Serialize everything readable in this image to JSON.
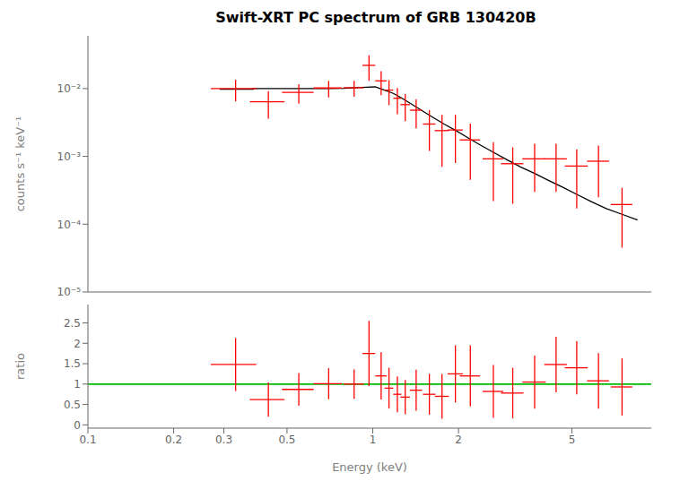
{
  "chart_data": [
    {
      "type": "errorbar",
      "title": "Swift-XRT PC spectrum of GRB 130420B",
      "ylabel": "counts s⁻¹ keV⁻¹",
      "log": true,
      "grid": false,
      "tick_labels": "y",
      "xlim": [
        0.1,
        9.5
      ],
      "ylim": [
        1e-05,
        0.06
      ],
      "xticks": [
        0.1,
        0.2,
        0.3,
        0.5,
        1,
        2,
        5
      ],
      "yticks": [
        {
          "value": 1e-05,
          "label": "10⁻⁵"
        },
        {
          "value": 0.0001,
          "label": "10⁻⁴"
        },
        {
          "value": 0.001,
          "label": "10⁻³"
        },
        {
          "value": 0.01,
          "label": "10⁻²"
        }
      ],
      "series": [
        {
          "type": "line",
          "color": "#000000",
          "x": [
            0.29,
            0.38,
            0.38,
            0.46,
            0.46,
            0.54,
            0.54,
            0.62,
            0.62,
            0.7,
            0.7,
            0.79,
            0.79,
            0.88,
            0.88,
            0.95,
            0.95,
            1.02,
            1.02,
            1.1,
            1.1,
            1.18,
            1.18,
            1.26,
            1.26,
            1.36,
            1.36,
            1.48,
            1.48,
            1.62,
            1.62,
            1.78,
            1.78,
            1.96,
            1.96,
            2.15,
            2.15,
            2.38,
            2.38,
            2.65,
            2.65,
            2.95,
            2.95,
            3.3,
            3.3,
            3.7,
            3.7,
            4.15,
            4.15,
            4.65,
            4.65,
            5.2,
            5.2,
            5.85,
            5.85,
            6.6,
            6.6,
            7.5,
            7.5,
            8.5
          ],
          "values": [
            0.0098,
            0.0098,
            0.01,
            0.01,
            0.01,
            0.01,
            0.01,
            0.01,
            0.01,
            0.01,
            0.01,
            0.0101,
            0.0101,
            0.0103,
            0.0103,
            0.0105,
            0.0105,
            0.0106,
            0.0106,
            0.0095,
            0.0095,
            0.0085,
            0.0085,
            0.0073,
            0.0073,
            0.006,
            0.006,
            0.0048,
            0.0048,
            0.0038,
            0.0038,
            0.003,
            0.003,
            0.0024,
            0.0024,
            0.0019,
            0.0019,
            0.00148,
            0.00148,
            0.00115,
            0.00115,
            0.0009,
            0.0009,
            0.0007,
            0.0007,
            0.00056,
            0.00056,
            0.00044,
            0.00044,
            0.00035,
            0.00035,
            0.000275,
            0.000275,
            0.000215,
            0.000215,
            0.00017,
            0.00017,
            0.00014,
            0.00014,
            0.000115
          ]
        },
        {
          "type": "errorbar",
          "color": "#ff0000",
          "x": [
            0.33,
            0.43,
            0.55,
            0.7,
            0.86,
            0.97,
            1.07,
            1.14,
            1.22,
            1.3,
            1.42,
            1.58,
            1.75,
            1.95,
            2.2,
            2.65,
            3.1,
            3.7,
            4.4,
            5.2,
            6.2,
            7.5
          ],
          "xerr": [
            0.06,
            0.06,
            0.07,
            0.08,
            0.07,
            0.05,
            0.05,
            0.04,
            0.04,
            0.05,
            0.07,
            0.08,
            0.1,
            0.12,
            0.18,
            0.22,
            0.28,
            0.35,
            0.4,
            0.48,
            0.55,
            0.65
          ],
          "values": [
            0.01,
            0.0064,
            0.0088,
            0.0102,
            0.0103,
            0.022,
            0.013,
            0.0095,
            0.0072,
            0.0058,
            0.0048,
            0.003,
            0.0024,
            0.00245,
            0.00175,
            0.00092,
            0.00078,
            0.00092,
            0.00092,
            0.00072,
            0.00085,
            0.000195
          ],
          "yerr": [
            0.0035,
            0.0028,
            0.0028,
            0.0028,
            0.0027,
            0.009,
            0.005,
            0.0038,
            0.003,
            0.0025,
            0.0022,
            0.0018,
            0.0017,
            0.00165,
            0.0013,
            0.0007,
            0.00058,
            0.00062,
            0.00062,
            0.00055,
            0.0006,
            0.00015
          ]
        }
      ]
    },
    {
      "type": "errorbar",
      "xlabel": "Energy (keV)",
      "ylabel": "ratio",
      "log": "x",
      "grid": false,
      "xlim": [
        0.1,
        9.5
      ],
      "ylim": [
        -0.08,
        2.95
      ],
      "xticks": [
        0.1,
        0.2,
        0.3,
        0.5,
        1,
        2,
        5
      ],
      "yticks": [
        0,
        0.5,
        1,
        1.5,
        2,
        2.5
      ],
      "reference_line": {
        "y": 1,
        "color": "#00bb00"
      },
      "series": [
        {
          "type": "errorbar",
          "color": "#ff0000",
          "x": [
            0.33,
            0.43,
            0.55,
            0.7,
            0.86,
            0.97,
            1.07,
            1.14,
            1.22,
            1.3,
            1.42,
            1.58,
            1.75,
            1.95,
            2.2,
            2.65,
            3.1,
            3.7,
            4.4,
            5.2,
            6.2,
            7.5
          ],
          "xerr": [
            0.06,
            0.06,
            0.07,
            0.08,
            0.07,
            0.05,
            0.05,
            0.04,
            0.04,
            0.05,
            0.07,
            0.08,
            0.1,
            0.12,
            0.18,
            0.22,
            0.28,
            0.35,
            0.4,
            0.48,
            0.55,
            0.65
          ],
          "values": [
            1.48,
            0.62,
            0.87,
            1.01,
            1.0,
            1.75,
            1.2,
            0.9,
            0.75,
            0.68,
            0.85,
            0.75,
            0.7,
            1.25,
            1.2,
            0.82,
            0.78,
            1.05,
            1.48,
            1.4,
            1.08,
            0.93
          ],
          "yerr": [
            0.65,
            0.42,
            0.4,
            0.38,
            0.36,
            0.8,
            0.58,
            0.5,
            0.44,
            0.42,
            0.5,
            0.5,
            0.55,
            0.7,
            0.75,
            0.65,
            0.62,
            0.65,
            0.68,
            0.65,
            0.68,
            0.7
          ]
        }
      ]
    }
  ]
}
